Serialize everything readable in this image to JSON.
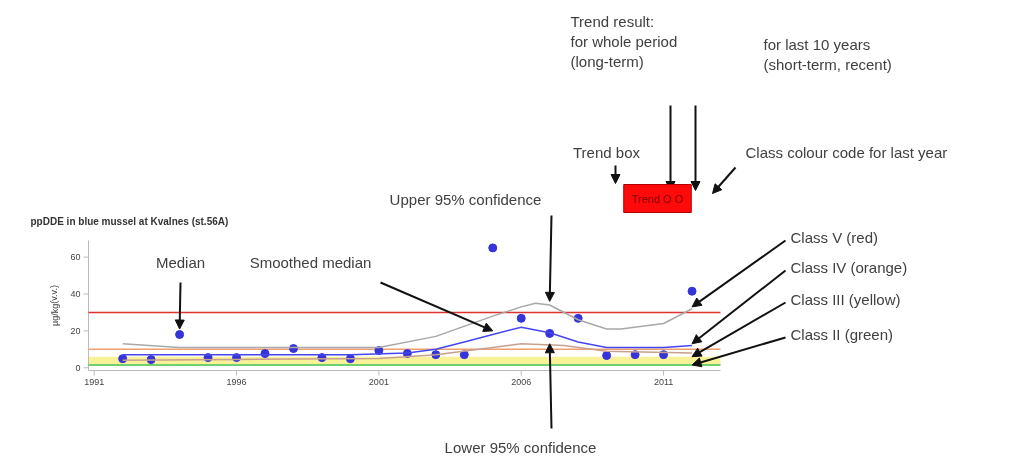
{
  "chart_data": {
    "type": "scatter",
    "title": "ppDDE in blue mussel at Kvalnes (st.56A)",
    "ylabel": "µg/kg(v.v.)",
    "xlim": [
      1990.8,
      2013
    ],
    "ylim": [
      -1.5,
      69
    ],
    "xticks": [
      1991,
      1996,
      2001,
      2006,
      2011
    ],
    "yticks": [
      0,
      20,
      40,
      60
    ],
    "grid": false,
    "marker": "circle",
    "series": [
      {
        "color": "#3434d8",
        "x": [
          1992,
          1993,
          1994,
          1995,
          1996,
          1997,
          1998,
          1999,
          2000,
          2001,
          2002,
          2003,
          2004,
          2005,
          2006,
          2007,
          2008,
          2009,
          2010,
          2011,
          2012
        ],
        "values": [
          4.9,
          4.4,
          18,
          5.5,
          5.5,
          7.7,
          10.4,
          5.5,
          4.9,
          9.3,
          7.7,
          7.1,
          7.1,
          65,
          26.8,
          18.6,
          26.8,
          6.6,
          7.1,
          7.1,
          41.5
        ]
      },
      {
        "type": "line",
        "marker": "none",
        "color": "#4646f0",
        "x": [
          1992,
          1994,
          1996,
          1998,
          2000,
          2002,
          2003,
          2004,
          2005,
          2006,
          2007,
          2008,
          2009,
          2010,
          2011,
          2012
        ],
        "values": [
          7,
          7,
          7,
          7,
          7,
          8,
          10,
          14,
          18,
          22,
          19,
          14,
          11,
          11,
          11,
          12
        ]
      },
      {
        "type": "line",
        "marker": "none",
        "color": "#a8a8a8",
        "x": [
          1992,
          1994,
          1996,
          1998,
          2001,
          2003,
          2005,
          2006,
          2006.5,
          2007,
          2008,
          2009,
          2009.5,
          2011,
          2012
        ],
        "values": [
          13,
          11,
          11,
          11,
          11,
          17,
          28,
          33,
          35,
          34,
          26,
          21,
          21,
          24,
          32
        ]
      },
      {
        "type": "line",
        "marker": "none",
        "color": "#c8a090",
        "x": [
          1992,
          1996,
          2001,
          2003,
          2005,
          2006,
          2007.5,
          2009,
          2012
        ],
        "values": [
          4,
          4.5,
          5,
          7,
          11,
          13,
          12,
          9,
          8
        ]
      }
    ],
    "ref_lines": [
      {
        "axis": "y",
        "value": 30,
        "color": "#e03030"
      },
      {
        "axis": "y",
        "value": 10,
        "color": "#f0a070"
      },
      {
        "axis": "y",
        "value": 1.5,
        "color": "#40c040"
      }
    ],
    "bands": [
      {
        "axis": "y",
        "from": 2,
        "to": 6,
        "color": "#f6f08c"
      }
    ],
    "annotations": [
      "Trend result:\nfor whole period\n(long-term)",
      "for last 10 years\n(short-term, recent)",
      "Trend box",
      "Class colour code for last year",
      "Trend O O",
      {
        "text": "Upper 95% confidence",
        "x": 2007,
        "y": 36
      },
      {
        "text": "Median",
        "x": 1994,
        "y": 21
      },
      {
        "text": "Smoothed median",
        "x": 2005,
        "y": 20
      },
      {
        "text": "Lower 95% confidence",
        "x": 2007,
        "y": 13
      },
      {
        "text": "Class V (red)",
        "x": 2012,
        "y": 33
      },
      {
        "text": "Class IV (orange)",
        "x": 2012,
        "y": 13
      },
      {
        "text": "Class III (yellow)",
        "x": 2012,
        "y": 6
      },
      {
        "text": "Class II (green)",
        "x": 2012,
        "y": 1.5
      }
    ]
  }
}
